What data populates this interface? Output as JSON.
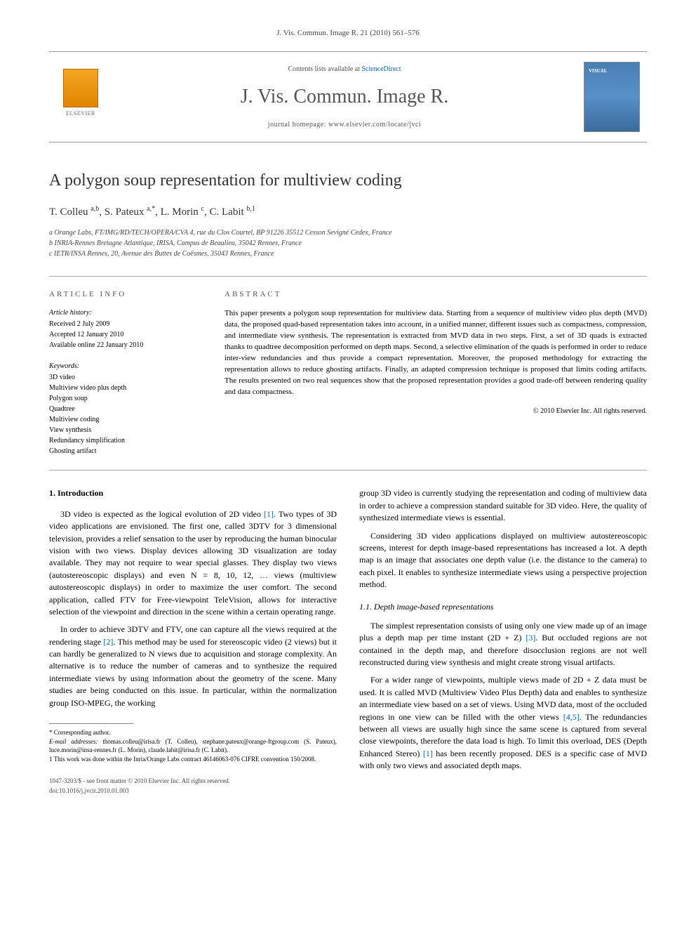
{
  "journal_ref": "J. Vis. Commun. Image R. 21 (2010) 561–576",
  "header": {
    "contents_prefix": "Contents lists available at ",
    "contents_link": "ScienceDirect",
    "journal_name": "J. Vis. Commun. Image R.",
    "homepage_prefix": "journal homepage: ",
    "homepage_url": "www.elsevier.com/locate/jvci",
    "publisher": "ELSEVIER",
    "cover_text": "VISUAL"
  },
  "title": "A polygon soup representation for multiview coding",
  "authors_html": "T. Colleu <sup>a,b</sup>, S. Pateux <sup>a,*</sup>, L. Morin <sup>c</sup>, C. Labit <sup>b,1</sup>",
  "affiliations": [
    "a Orange Labs, FT/IMG/RD/TECH/OPERA/CVA 4, rue du Clos Courtel, BP 91226 35512 Cesson Sevigné Cedex, France",
    "b INRIA-Rennes Bretagne Atlantique, IRISA, Campus de Beaulieu, 35042 Rennes, France",
    "c IETR/INSA Rennes, 20, Avenue des Buttes de Coësmes, 35043 Rennes, France"
  ],
  "info": {
    "heading_info": "ARTICLE INFO",
    "heading_abstract": "ABSTRACT",
    "history_label": "Article history:",
    "history": [
      "Received 2 July 2009",
      "Accepted 12 January 2010",
      "Available online 22 January 2010"
    ],
    "keywords_label": "Keywords:",
    "keywords": [
      "3D video",
      "Multiview video plus depth",
      "Polygon soup",
      "Quadtree",
      "Multiview coding",
      "View synthesis",
      "Redundancy simplification",
      "Ghosting artifact"
    ]
  },
  "abstract": "This paper presents a polygon soup representation for multiview data. Starting from a sequence of multiview video plus depth (MVD) data, the proposed quad-based representation takes into account, in a unified manner, different issues such as compactness, compression, and intermediate view synthesis. The representation is extracted from MVD data in two steps. First, a set of 3D quads is extracted thanks to quadtree decomposition performed on depth maps. Second, a selective elimination of the quads is performed in order to reduce inter-view redundancies and thus provide a compact representation. Moreover, the proposed methodology for extracting the representation allows to reduce ghosting artifacts. Finally, an adapted compression technique is proposed that limits coding artifacts. The results presented on two real sequences show that the proposed representation provides a good trade-off between rendering quality and data compactness.",
  "copyright": "© 2010 Elsevier Inc. All rights reserved.",
  "section1": {
    "heading": "1. Introduction",
    "p1_before": "3D video is expected as the logical evolution of 2D video ",
    "p1_cite1": "[1]",
    "p1_after": ". Two types of 3D video applications are envisioned. The first one, called 3DTV for 3 dimensional television, provides a relief sensation to the user by reproducing the human binocular vision with two views. Display devices allowing 3D visualization are today available. They may not require to wear special glasses. They display two views (autostereoscopic displays) and even N = 8, 10, 12, … views (multiview autostereoscopic displays) in order to maximize the user comfort. The second application, called FTV for Free-viewpoint TeleVision, allows for interactive selection of the viewpoint and direction in the scene within a certain operating range.",
    "p2_before": "In order to achieve 3DTV and FTV, one can capture all the views required at the rendering stage ",
    "p2_cite1": "[2]",
    "p2_after": ". This method may be used for stereoscopic video (2 views) but it can hardly be generalized to N views due to acquisition and storage complexity. An alternative is to reduce the number of cameras and to synthesize the required intermediate views by using information about the geometry of the scene. Many studies are being conducted on this issue. In particular, within the normalization group ISO-MPEG, the working",
    "p3": "group 3D video is currently studying the representation and coding of multiview data in order to achieve a compression standard suitable for 3D video. Here, the quality of synthesized intermediate views is essential.",
    "p4": "Considering 3D video applications displayed on multiview autostereoscopic screens, interest for depth image-based representations has increased a lot. A depth map is an image that associates one depth value (i.e. the distance to the camera) to each pixel. It enables to synthesize intermediate views using a perspective projection method."
  },
  "section11": {
    "heading": "1.1. Depth image-based representations",
    "p1_before": "The simplest representation consists of using only one view made up of an image plus a depth map per time instant (2D + Z) ",
    "p1_cite1": "[3]",
    "p1_after": ". But occluded regions are not contained in the depth map, and therefore disocclusion regions are not well reconstructed during view synthesis and might create strong visual artifacts.",
    "p2_before": "For a wider range of viewpoints, multiple views made of 2D + Z data must be used. It is called MVD (Multiview Video Plus Depth) data and enables to synthesize an intermediate view based on a set of views. Using MVD data, most of the occluded regions in one view can be filled with the other views ",
    "p2_cite1": "[4,5]",
    "p2_mid": ". The redundancies between all views are usually high since the same scene is captured from several close viewpoints, therefore the data load is high. To limit this overload, DES (Depth Enhanced Stereo) ",
    "p2_cite2": "[1]",
    "p2_after": " has been recently proposed. DES is a specific case of MVD with only two views and associated depth maps."
  },
  "footnotes": {
    "corr": "* Corresponding author.",
    "email_label": "E-mail addresses: ",
    "emails": "thomas.colleu@irisa.fr (T. Colleu), stephane.pateux@orange-ftgroup.com (S. Pateux), luce.morin@insa-rennes.fr (L. Morin), claude.labit@irisa.fr (C. Labit).",
    "fn1": "1 This work was done within the Inria/Orange Labs contract 46146063-076 CIFRE convention 150/2008."
  },
  "footer": {
    "issn": "1047-3203/$ - see front matter © 2010 Elsevier Inc. All rights reserved.",
    "doi": "doi:10.1016/j.jvcir.2010.01.003"
  },
  "colors": {
    "link": "#0066cc",
    "text": "#000000",
    "muted": "#555555",
    "rule": "#aaaaaa"
  }
}
